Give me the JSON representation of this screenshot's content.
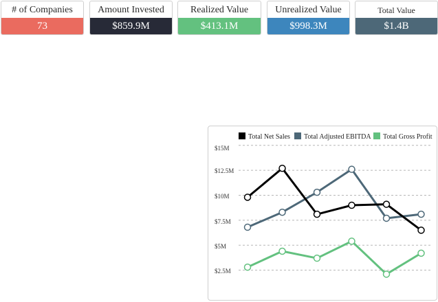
{
  "kpis": [
    {
      "label": "# of Companies",
      "value": "73",
      "color": "#ea6b5f"
    },
    {
      "label": "Amount Invested",
      "value": "$859.9M",
      "color": "#272a37"
    },
    {
      "label": "Realized Value",
      "value": "$413.1M",
      "color": "#63c17f"
    },
    {
      "label": "Unrealized Value",
      "value": "$998.3M",
      "color": "#3d86bd"
    },
    {
      "label": "Total Value",
      "value": "$1.4B",
      "color": "#4d6878"
    }
  ],
  "chart_data": {
    "type": "line",
    "title": "",
    "xlabel": "",
    "ylabel": "",
    "ylim": [
      0,
      15
    ],
    "y_ticks": [
      "$2.5M",
      "$5M",
      "$7.5M",
      "$10M",
      "$12.5M",
      "$15M"
    ],
    "y_tick_values": [
      2.5,
      5,
      7.5,
      10,
      12.5,
      15
    ],
    "x": [
      1,
      2,
      3,
      4,
      5,
      6
    ],
    "grid": "horizontal-dashed",
    "legend": "top",
    "series": [
      {
        "name": "Total Net Sales",
        "color": "#000000",
        "values": [
          9.8,
          12.7,
          8.1,
          9.0,
          9.1,
          6.5
        ]
      },
      {
        "name": "Total Adjusted EBITDA",
        "color": "#4d6878",
        "values": [
          6.8,
          8.3,
          10.3,
          12.6,
          7.7,
          8.1
        ]
      },
      {
        "name": "Total Gross Profit",
        "color": "#63c17f",
        "values": [
          2.8,
          4.4,
          3.7,
          5.4,
          2.1,
          4.2
        ]
      }
    ]
  }
}
